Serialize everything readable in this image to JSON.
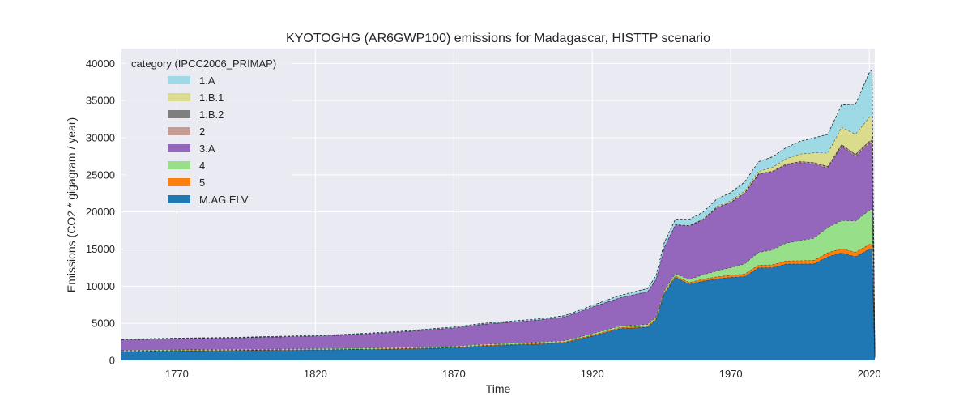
{
  "chart_data": {
    "type": "area",
    "stacked": true,
    "title": "KYOTOGHG (AR6GWP100) emissions for Madagascar, HISTTP scenario",
    "xlabel": "Time",
    "ylabel": "Emissions (CO2 * gigagram / year)",
    "xlim": [
      1750,
      2022
    ],
    "ylim": [
      0,
      42000
    ],
    "xticks": [
      1770,
      1820,
      1870,
      1920,
      1970,
      2020
    ],
    "yticks": [
      0,
      5000,
      10000,
      15000,
      20000,
      25000,
      30000,
      35000,
      40000
    ],
    "grid": true,
    "legend": {
      "title": "category (IPCC2006_PRIMAP)",
      "placement": "top-left"
    },
    "x": [
      1750,
      1770,
      1790,
      1810,
      1830,
      1850,
      1870,
      1880,
      1900,
      1910,
      1920,
      1930,
      1940,
      1943,
      1946,
      1950,
      1955,
      1960,
      1965,
      1970,
      1975,
      1980,
      1985,
      1990,
      1995,
      2000,
      2005,
      2010,
      2015,
      2020,
      2021,
      2022
    ],
    "series": [
      {
        "name": "M.AG.ELV",
        "color": "#1f77b4",
        "values": [
          1200,
          1300,
          1350,
          1400,
          1450,
          1550,
          1700,
          1950,
          2200,
          2400,
          3300,
          4300,
          4500,
          5500,
          9000,
          11200,
          10300,
          10700,
          11000,
          11200,
          11300,
          12500,
          12500,
          13000,
          13000,
          13000,
          14000,
          14500,
          14000,
          15000,
          15000,
          300
        ]
      },
      {
        "name": "5",
        "color": "#ff7f0e",
        "values": [
          50,
          50,
          50,
          60,
          60,
          70,
          80,
          90,
          100,
          110,
          130,
          150,
          160,
          170,
          180,
          200,
          220,
          250,
          280,
          300,
          330,
          360,
          390,
          420,
          450,
          480,
          520,
          560,
          600,
          640,
          650,
          30
        ]
      },
      {
        "name": "4",
        "color": "#98df8a",
        "values": [
          100,
          100,
          100,
          100,
          110,
          110,
          120,
          130,
          150,
          160,
          180,
          200,
          220,
          240,
          260,
          300,
          400,
          600,
          800,
          1000,
          1400,
          1700,
          2000,
          2400,
          2700,
          3000,
          3400,
          3800,
          4200,
          4600,
          4700,
          100
        ]
      },
      {
        "name": "3.A",
        "color": "#9467bd",
        "values": [
          1450,
          1500,
          1550,
          1650,
          1800,
          2100,
          2500,
          2700,
          3000,
          3200,
          3600,
          3800,
          4400,
          5000,
          5800,
          6600,
          7200,
          7400,
          8500,
          8800,
          9500,
          10500,
          10500,
          10500,
          10500,
          10000,
          8000,
          10000,
          8700,
          9000,
          9000,
          200
        ]
      },
      {
        "name": "2",
        "color": "#c49c94",
        "values": [
          0,
          0,
          0,
          0,
          0,
          0,
          0,
          0,
          0,
          0,
          0,
          5,
          10,
          15,
          20,
          25,
          30,
          40,
          50,
          60,
          70,
          80,
          90,
          100,
          110,
          130,
          150,
          170,
          190,
          210,
          220,
          10
        ]
      },
      {
        "name": "1.B.2",
        "color": "#7f7f7f",
        "values": [
          0,
          0,
          0,
          0,
          0,
          0,
          0,
          0,
          0,
          0,
          0,
          0,
          0,
          0,
          0,
          0,
          0,
          0,
          0,
          0,
          20,
          30,
          40,
          50,
          60,
          70,
          80,
          90,
          100,
          110,
          110,
          5
        ]
      },
      {
        "name": "1.B.1",
        "color": "#dbdb8d",
        "values": [
          0,
          0,
          0,
          0,
          0,
          0,
          0,
          0,
          0,
          0,
          0,
          0,
          0,
          0,
          0,
          0,
          50,
          80,
          120,
          160,
          200,
          300,
          500,
          700,
          1000,
          1300,
          1800,
          2300,
          2700,
          3200,
          3300,
          100
        ]
      },
      {
        "name": "1.A",
        "color": "#9edae5",
        "values": [
          50,
          50,
          50,
          60,
          70,
          80,
          100,
          110,
          130,
          150,
          200,
          300,
          400,
          500,
          600,
          700,
          800,
          900,
          1000,
          1100,
          1200,
          1300,
          1400,
          1500,
          1700,
          2000,
          2500,
          3000,
          4000,
          6000,
          6200,
          300
        ]
      }
    ]
  }
}
